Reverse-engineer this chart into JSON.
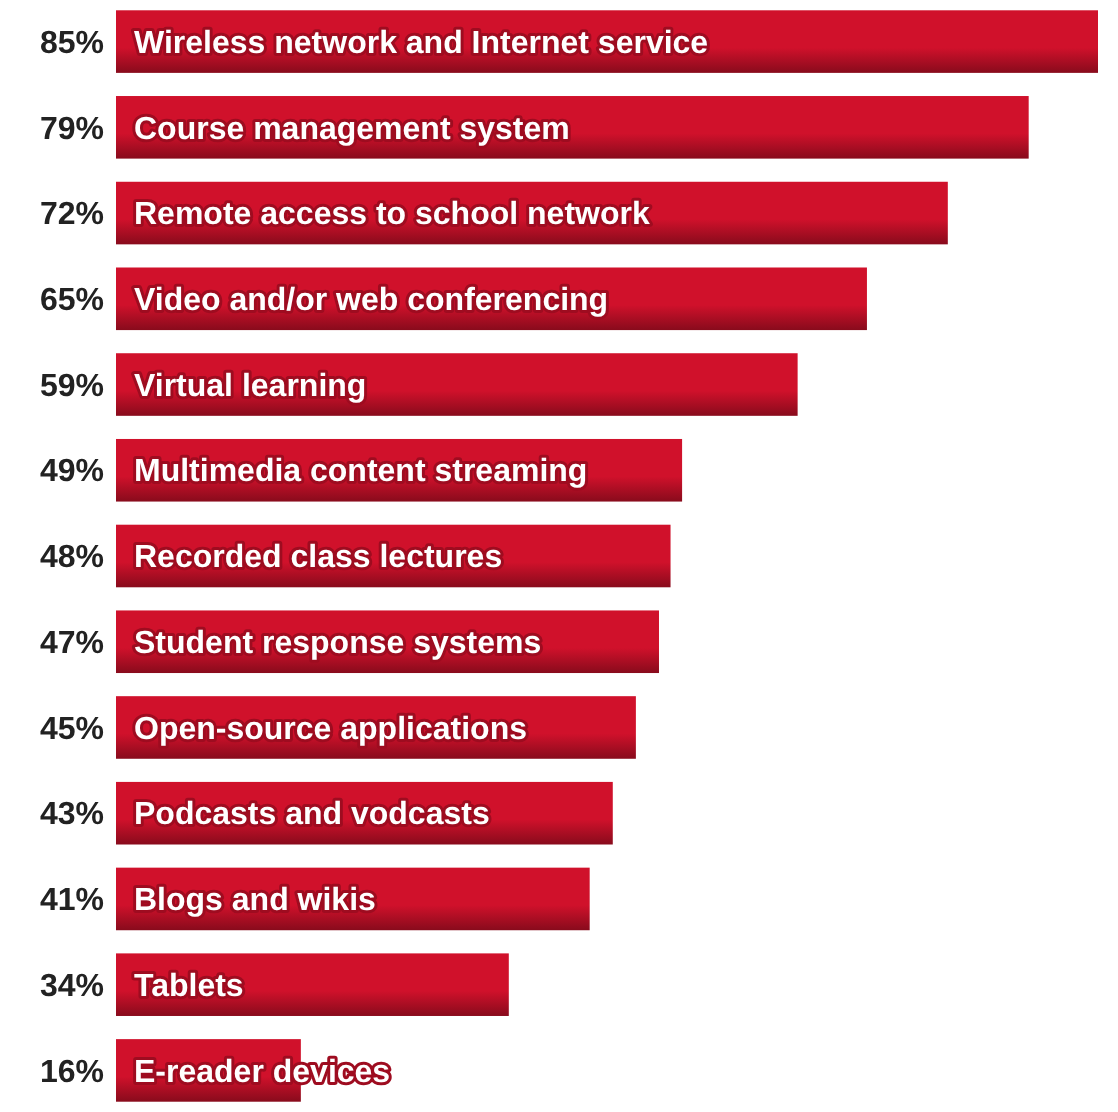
{
  "chart_data": {
    "type": "bar",
    "orientation": "horizontal",
    "categories": [
      "Wireless network and Internet service",
      "Course management system",
      "Remote access to school network",
      "Video and/or web conferencing",
      "Virtual learning",
      "Multimedia content streaming",
      "Recorded class lectures",
      "Student response systems",
      "Open-source applications",
      "Podcasts and vodcasts",
      "Blogs and wikis",
      "Tablets",
      "E-reader devices"
    ],
    "values": [
      85,
      79,
      72,
      65,
      59,
      49,
      48,
      47,
      45,
      43,
      41,
      34,
      16
    ],
    "value_labels": [
      "85%",
      "79%",
      "72%",
      "65%",
      "59%",
      "49%",
      "48%",
      "47%",
      "45%",
      "43%",
      "41%",
      "34%",
      "16%"
    ],
    "color": "#d0112b"
  }
}
